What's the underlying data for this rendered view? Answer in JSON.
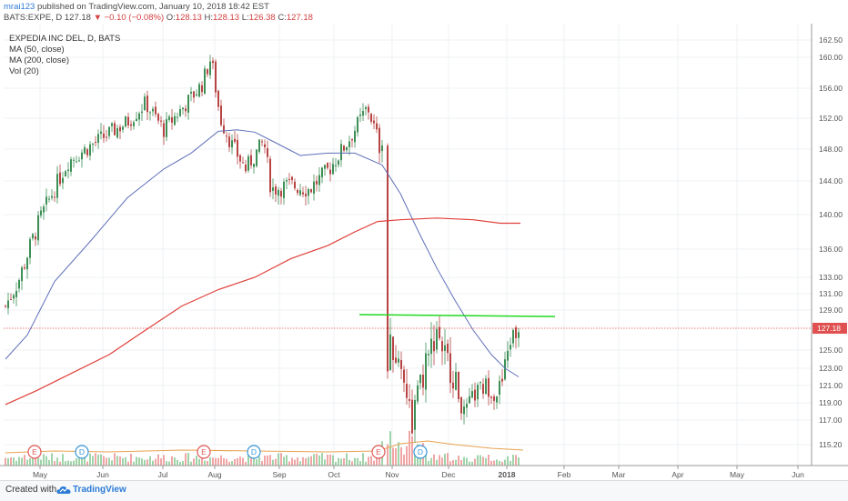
{
  "header": {
    "author": "mrai123",
    "published": " published on TradingView.com, January 10, 2018 18:42 EST",
    "symbol": "BATS:EXPE, D ",
    "price": "127.18",
    "change": " −0.10 (−0.08%)",
    "o_label": " O:",
    "o_val": "128.13",
    "h_label": " H:",
    "h_val": "128.13",
    "l_label": " L:",
    "l_val": "126.38",
    "c_label": " C:",
    "c_val": "127.18"
  },
  "legend": {
    "title": "EXPEDIA INC DEL, D, BATS",
    "items": [
      "MA (50, close)",
      "MA (200, close)",
      "Vol (20)"
    ]
  },
  "footer": {
    "created_with": "Created with",
    "brand": "TradingView"
  },
  "chart_data": {
    "type": "candlestick",
    "x_axis_labels": [
      "May",
      "Jun",
      "Jul",
      "Aug",
      "Sep",
      "Oct",
      "Nov",
      "Dec",
      "2018",
      "Feb",
      "Mar",
      "Apr",
      "May",
      "Jun"
    ],
    "y_axis_labels": [
      "162.50",
      "160.00",
      "156.00",
      "152.00",
      "148.00",
      "144.00",
      "140.00",
      "136.00",
      "133.00",
      "131.00",
      "129.00",
      "125.00",
      "123.00",
      "121.00",
      "119.00",
      "117.00",
      "115.20"
    ],
    "last_price_label": "127.18",
    "last_price": 127.18,
    "resistance_level": 128.4,
    "events": [
      {
        "label": "E",
        "x_index": 38
      },
      {
        "label": "D",
        "x_index": 90
      },
      {
        "label": "E",
        "x_index": 224
      },
      {
        "label": "D",
        "x_index": 279
      },
      {
        "label": "E",
        "x_index": 416
      },
      {
        "label": "D",
        "x_index": 462
      }
    ],
    "colors": {
      "up": "#3d8f55",
      "down": "#b84343",
      "ma50": "#5e6fb8",
      "ma200": "#e0403a",
      "resistance": "#22d822",
      "last_price": "#e05050",
      "volume_up": "#9fd3a8",
      "volume_down": "#f0a6a6"
    }
  }
}
